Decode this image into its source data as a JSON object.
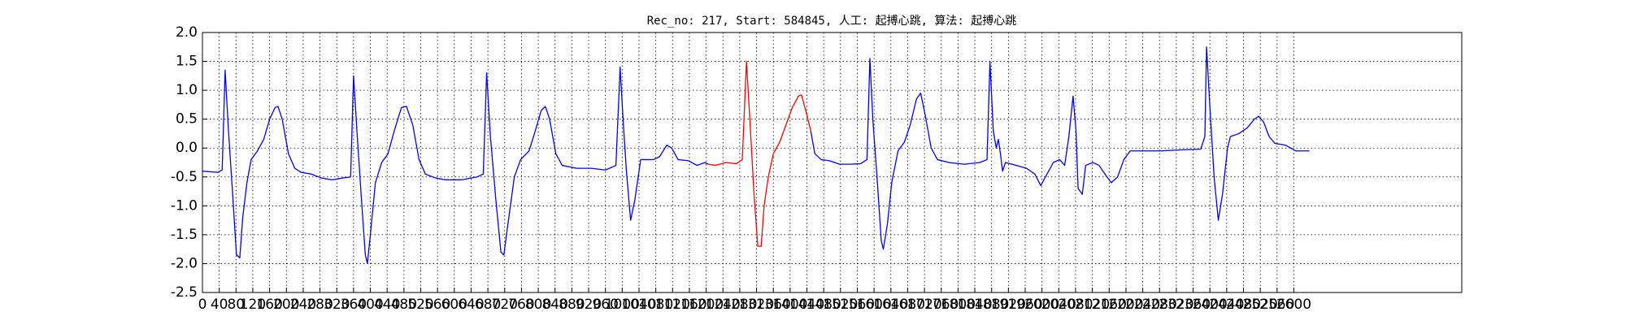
{
  "chart_data": {
    "type": "line",
    "title": "Rec_no: 217, Start: 584845, 人工: 起搏心跳, 算法: 起搏心跳",
    "xlim": [
      0,
      3000
    ],
    "ylim": [
      -2.5,
      2.0
    ],
    "xticks": [
      0,
      40,
      80,
      120,
      160,
      200,
      240,
      280,
      320,
      360,
      400,
      440,
      480,
      520,
      560,
      600,
      640,
      680,
      720,
      760,
      800,
      840,
      880,
      920,
      960,
      1000,
      1040,
      1080,
      1120,
      1160,
      1200,
      1240,
      1280,
      1320,
      1360,
      1400,
      1440,
      1480,
      1520,
      1560,
      1600,
      1640,
      1680,
      1720,
      1760,
      1800,
      1840,
      1880,
      1920,
      1960,
      2000,
      2040,
      2080,
      2120,
      2160,
      2200,
      2240,
      2280,
      2320,
      2360,
      2400,
      2440,
      2480,
      2520,
      2560,
      2600
    ],
    "yticks": [
      {
        "value": -2.5,
        "label": "-2.5"
      },
      {
        "value": -2.0,
        "label": "-2.0"
      },
      {
        "value": -1.5,
        "label": "-1.5"
      },
      {
        "value": -1.0,
        "label": "-1.0"
      },
      {
        "value": -0.5,
        "label": "-0.5"
      },
      {
        "value": 0.0,
        "label": "0.0"
      },
      {
        "value": 0.5,
        "label": "0.5"
      },
      {
        "value": 1.0,
        "label": "1.0"
      },
      {
        "value": 1.5,
        "label": "1.5"
      },
      {
        "value": 2.0,
        "label": "2.0"
      }
    ],
    "grid": true,
    "series": [
      {
        "color": "#0000ff",
        "x": [
          0,
          37,
          47,
          54,
          62,
          72,
          81,
          89,
          96,
          106,
          116,
          131,
          146,
          160,
          173,
          180,
          190,
          205,
          220,
          235,
          259,
          284,
          309,
          333,
          353,
          360,
          368,
          378,
          388,
          393,
          400,
          412,
          427,
          442,
          457,
          474,
          486,
          501,
          516,
          531,
          556,
          580,
          617,
          654,
          669,
          677,
          686,
          699,
          711,
          718,
          728,
          743,
          758,
          778,
          793,
          807,
          817,
          827,
          842,
          857,
          891,
          926,
          960,
          985,
          995,
          1002,
          1010,
          1020,
          1030,
          1044,
          1074,
          1089,
          1106,
          1118,
          1133,
          1158,
          1178,
          1197,
          1205,
          1320,
          1449,
          1459,
          1474,
          1494,
          1518,
          1543,
          1568,
          1583,
          1590,
          1597,
          1607,
          1617,
          1622,
          1632,
          1642,
          1657,
          1672,
          1686,
          1701,
          1711,
          1721,
          1736,
          1751,
          1778,
          1815,
          1852,
          1869,
          1876,
          1884,
          1891,
          1896,
          1901,
          1906,
          1913,
          1938,
          1963,
          1983,
          1997,
          2012,
          2027,
          2042,
          2054,
          2064,
          2074,
          2081,
          2086,
          2096,
          2104,
          2121,
          2136,
          2150,
          2165,
          2180,
          2195,
          2210,
          2234,
          2284,
          2333,
          2378,
          2388,
          2392,
          2400,
          2410,
          2420,
          2430,
          2442,
          2449,
          2469,
          2489,
          2506,
          2516,
          2528,
          2541,
          2555,
          2580,
          2605,
          2620,
          2637
        ],
        "values": [
          -0.4,
          -0.42,
          -0.38,
          1.35,
          0.3,
          -0.8,
          -1.85,
          -1.9,
          -1.2,
          -0.6,
          -0.2,
          -0.05,
          0.15,
          0.5,
          0.7,
          0.72,
          0.5,
          -0.1,
          -0.35,
          -0.42,
          -0.45,
          -0.52,
          -0.55,
          -0.52,
          -0.5,
          1.25,
          0.3,
          -0.8,
          -1.85,
          -2.0,
          -1.5,
          -0.6,
          -0.25,
          -0.1,
          0.3,
          0.7,
          0.72,
          0.4,
          -0.2,
          -0.45,
          -0.52,
          -0.55,
          -0.55,
          -0.5,
          -0.45,
          1.3,
          0.2,
          -0.9,
          -1.8,
          -1.85,
          -1.3,
          -0.5,
          -0.2,
          -0.05,
          0.3,
          0.65,
          0.72,
          0.5,
          -0.1,
          -0.3,
          -0.35,
          -0.35,
          -0.38,
          -0.3,
          1.4,
          0.5,
          -0.4,
          -1.25,
          -0.9,
          -0.2,
          -0.2,
          -0.15,
          0.05,
          0.0,
          -0.2,
          -0.22,
          -0.3,
          -0.25,
          -0.28,
          null,
          0.3,
          -0.1,
          -0.2,
          -0.22,
          -0.28,
          -0.28,
          -0.27,
          -0.2,
          1.55,
          0.5,
          -0.5,
          -1.6,
          -1.75,
          -1.3,
          -0.6,
          -0.05,
          0.1,
          0.4,
          0.85,
          0.95,
          0.6,
          0.0,
          -0.2,
          -0.25,
          -0.28,
          -0.25,
          -0.2,
          1.5,
          0.3,
          0.0,
          0.15,
          -0.1,
          -0.4,
          -0.25,
          -0.3,
          -0.35,
          -0.45,
          -0.65,
          -0.45,
          -0.25,
          -0.2,
          -0.3,
          0.2,
          0.9,
          0.3,
          -0.7,
          -0.8,
          -0.3,
          -0.25,
          -0.3,
          -0.45,
          -0.6,
          -0.5,
          -0.2,
          -0.05,
          -0.05,
          -0.05,
          -0.03,
          -0.02,
          0.2,
          1.75,
          0.7,
          -0.5,
          -1.25,
          -0.8,
          0.0,
          0.2,
          0.25,
          0.35,
          0.5,
          0.55,
          0.45,
          0.2,
          0.08,
          0.05,
          -0.05,
          -0.05,
          -0.05
        ]
      },
      {
        "color": "#ff0000",
        "x": [
          1205,
          1222,
          1247,
          1272,
          1286,
          1296,
          1304,
          1314,
          1323,
          1331,
          1338,
          1348,
          1360,
          1375,
          1390,
          1405,
          1420,
          1427,
          1439,
          1449
        ],
        "values": [
          -0.28,
          -0.3,
          -0.25,
          -0.27,
          -0.2,
          1.5,
          0.5,
          -0.8,
          -1.7,
          -1.7,
          -1.0,
          -0.5,
          -0.1,
          0.1,
          0.4,
          0.7,
          0.9,
          0.92,
          0.6,
          0.3
        ]
      }
    ]
  }
}
